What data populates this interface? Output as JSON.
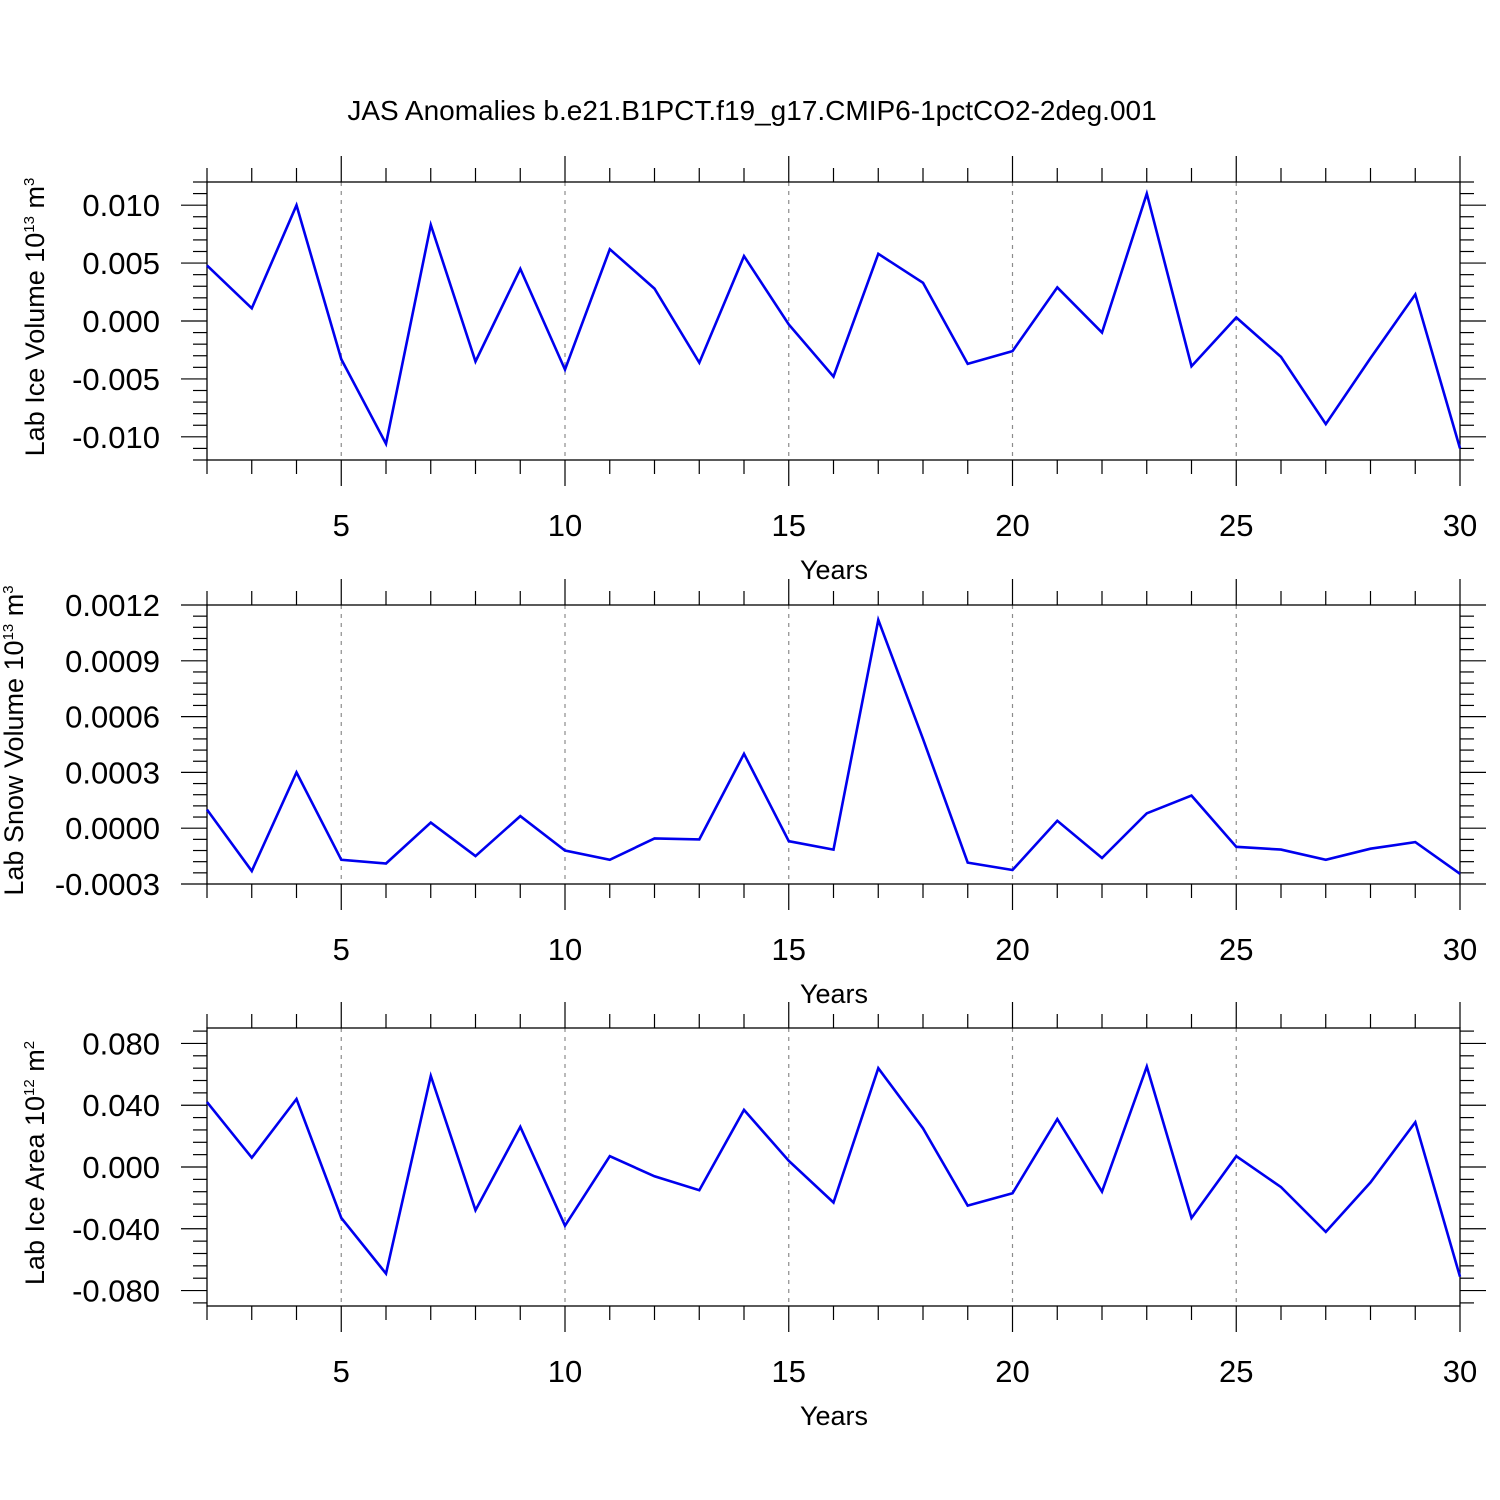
{
  "figure": {
    "title": "JAS Anomalies b.e21.B1PCT.f19_g17.CMIP6-1pctCO2-2deg.001"
  },
  "colors": {
    "line": "#0000ee",
    "axes": "#000000",
    "gridline": "#8c8c8c"
  },
  "chart_data": [
    {
      "type": "line",
      "title": "JAS Anomalies b.e21.B1PCT.f19_g17.CMIP6-1pctCO2-2deg.001",
      "xlabel": "Years",
      "ylabel": {
        "main": "Lab Ice Volume 10",
        "sup1": "13",
        "mid": " m",
        "sup2": "3"
      },
      "xlim": [
        2,
        30
      ],
      "ylim": [
        -0.012,
        0.012
      ],
      "xticks": [
        5,
        10,
        15,
        20,
        25,
        30
      ],
      "xtick_labels": [
        "5",
        "10",
        "15",
        "20",
        "25",
        "30"
      ],
      "yticks": [
        -0.01,
        -0.005,
        0.0,
        0.005,
        0.01
      ],
      "ytick_labels": [
        "-0.010",
        "-0.005",
        "0.000",
        "0.005",
        "0.010"
      ],
      "grid": "vertical dashed at major x ticks",
      "series": [
        {
          "x": [
            2,
            3,
            4,
            5,
            6,
            7,
            8,
            9,
            10,
            11,
            12,
            13,
            14,
            15,
            16,
            17,
            18,
            19,
            20,
            21,
            22,
            23,
            24,
            25,
            26,
            27,
            28,
            29,
            30
          ],
          "values": [
            0.0048,
            0.0011,
            0.01,
            -0.0033,
            -0.0106,
            0.0083,
            -0.0035,
            0.0045,
            -0.0042,
            0.0062,
            0.0028,
            -0.0036,
            0.0056,
            -0.0003,
            -0.0048,
            0.0058,
            0.0033,
            -0.0037,
            -0.0026,
            0.0029,
            -0.001,
            0.011,
            -0.0039,
            0.0003,
            -0.0031,
            -0.0089,
            -0.0032,
            0.0023,
            -0.011
          ]
        }
      ]
    },
    {
      "type": "line",
      "xlabel": "Years",
      "ylabel": {
        "main": "Lab Snow Volume 10",
        "sup1": "13",
        "mid": " m",
        "sup2": "3"
      },
      "xlim": [
        2,
        30
      ],
      "ylim": [
        -0.0003,
        0.0012
      ],
      "xticks": [
        5,
        10,
        15,
        20,
        25,
        30
      ],
      "xtick_labels": [
        "5",
        "10",
        "15",
        "20",
        "25",
        "30"
      ],
      "yticks": [
        -0.0003,
        0.0,
        0.0003,
        0.0006,
        0.0009,
        0.0012
      ],
      "ytick_labels": [
        "-0.0003",
        "0.0000",
        "0.0003",
        "0.0006",
        "0.0009",
        "0.0012"
      ],
      "grid": "vertical dashed at major x ticks",
      "series": [
        {
          "x": [
            2,
            3,
            4,
            5,
            6,
            7,
            8,
            9,
            10,
            11,
            12,
            13,
            14,
            15,
            16,
            17,
            18,
            19,
            20,
            21,
            22,
            23,
            24,
            25,
            26,
            27,
            28,
            29,
            30
          ],
          "values": [
            0.0001,
            -0.00023,
            0.0003,
            -0.00017,
            -0.00019,
            3e-05,
            -0.00015,
            6.5e-05,
            -0.00012,
            -0.00017,
            -5.5e-05,
            -6e-05,
            0.0004,
            -7e-05,
            -0.000115,
            0.00112,
            0.00048,
            -0.000185,
            -0.000225,
            4e-05,
            -0.00016,
            8e-05,
            0.000175,
            -0.0001,
            -0.000115,
            -0.00017,
            -0.00011,
            -7.5e-05,
            -0.000245
          ]
        }
      ]
    },
    {
      "type": "line",
      "xlabel": "Years",
      "ylabel": {
        "main": "Lab Ice Area 10",
        "sup1": "12",
        "mid": " m",
        "sup2": "2"
      },
      "xlim": [
        2,
        30
      ],
      "ylim": [
        -0.09,
        0.09
      ],
      "xticks": [
        5,
        10,
        15,
        20,
        25,
        30
      ],
      "xtick_labels": [
        "5",
        "10",
        "15",
        "20",
        "25",
        "30"
      ],
      "yticks": [
        -0.08,
        -0.04,
        0.0,
        0.04,
        0.08
      ],
      "ytick_labels": [
        "-0.080",
        "-0.040",
        "0.000",
        "0.040",
        "0.080"
      ],
      "grid": "vertical dashed at major x ticks",
      "series": [
        {
          "x": [
            2,
            3,
            4,
            5,
            6,
            7,
            8,
            9,
            10,
            11,
            12,
            13,
            14,
            15,
            16,
            17,
            18,
            19,
            20,
            21,
            22,
            23,
            24,
            25,
            26,
            27,
            28,
            29,
            30
          ],
          "values": [
            0.042,
            0.006,
            0.044,
            -0.033,
            -0.069,
            0.059,
            -0.028,
            0.026,
            -0.038,
            0.007,
            -0.006,
            -0.015,
            0.037,
            0.004,
            -0.023,
            0.064,
            0.025,
            -0.025,
            -0.017,
            0.031,
            -0.016,
            0.065,
            -0.033,
            0.007,
            -0.013,
            -0.042,
            -0.01,
            0.029,
            -0.071
          ]
        }
      ]
    }
  ]
}
